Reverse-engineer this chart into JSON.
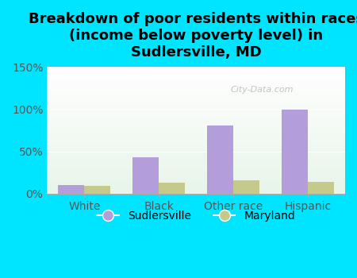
{
  "title": "Breakdown of poor residents within races\n(income below poverty level) in\nSudlersville, MD",
  "categories": [
    "White",
    "Black",
    "Other race",
    "Hispanic"
  ],
  "sudlersville_values": [
    10,
    43,
    81,
    100
  ],
  "maryland_values": [
    9,
    13,
    16,
    14
  ],
  "sudlersville_color": "#b39ddb",
  "maryland_color": "#c5c98a",
  "background_color": "#00e5ff",
  "plot_bg_top": "#e8f5e9",
  "plot_bg_bottom": "#ffffff",
  "ylim": [
    0,
    150
  ],
  "yticks": [
    0,
    50,
    100,
    150
  ],
  "ytick_labels": [
    "0%",
    "50%",
    "100%",
    "150%"
  ],
  "bar_width": 0.35,
  "legend_labels": [
    "Sudlersville",
    "Maryland"
  ],
  "watermark": "City-Data.com",
  "title_fontsize": 13,
  "tick_fontsize": 10,
  "legend_fontsize": 10
}
